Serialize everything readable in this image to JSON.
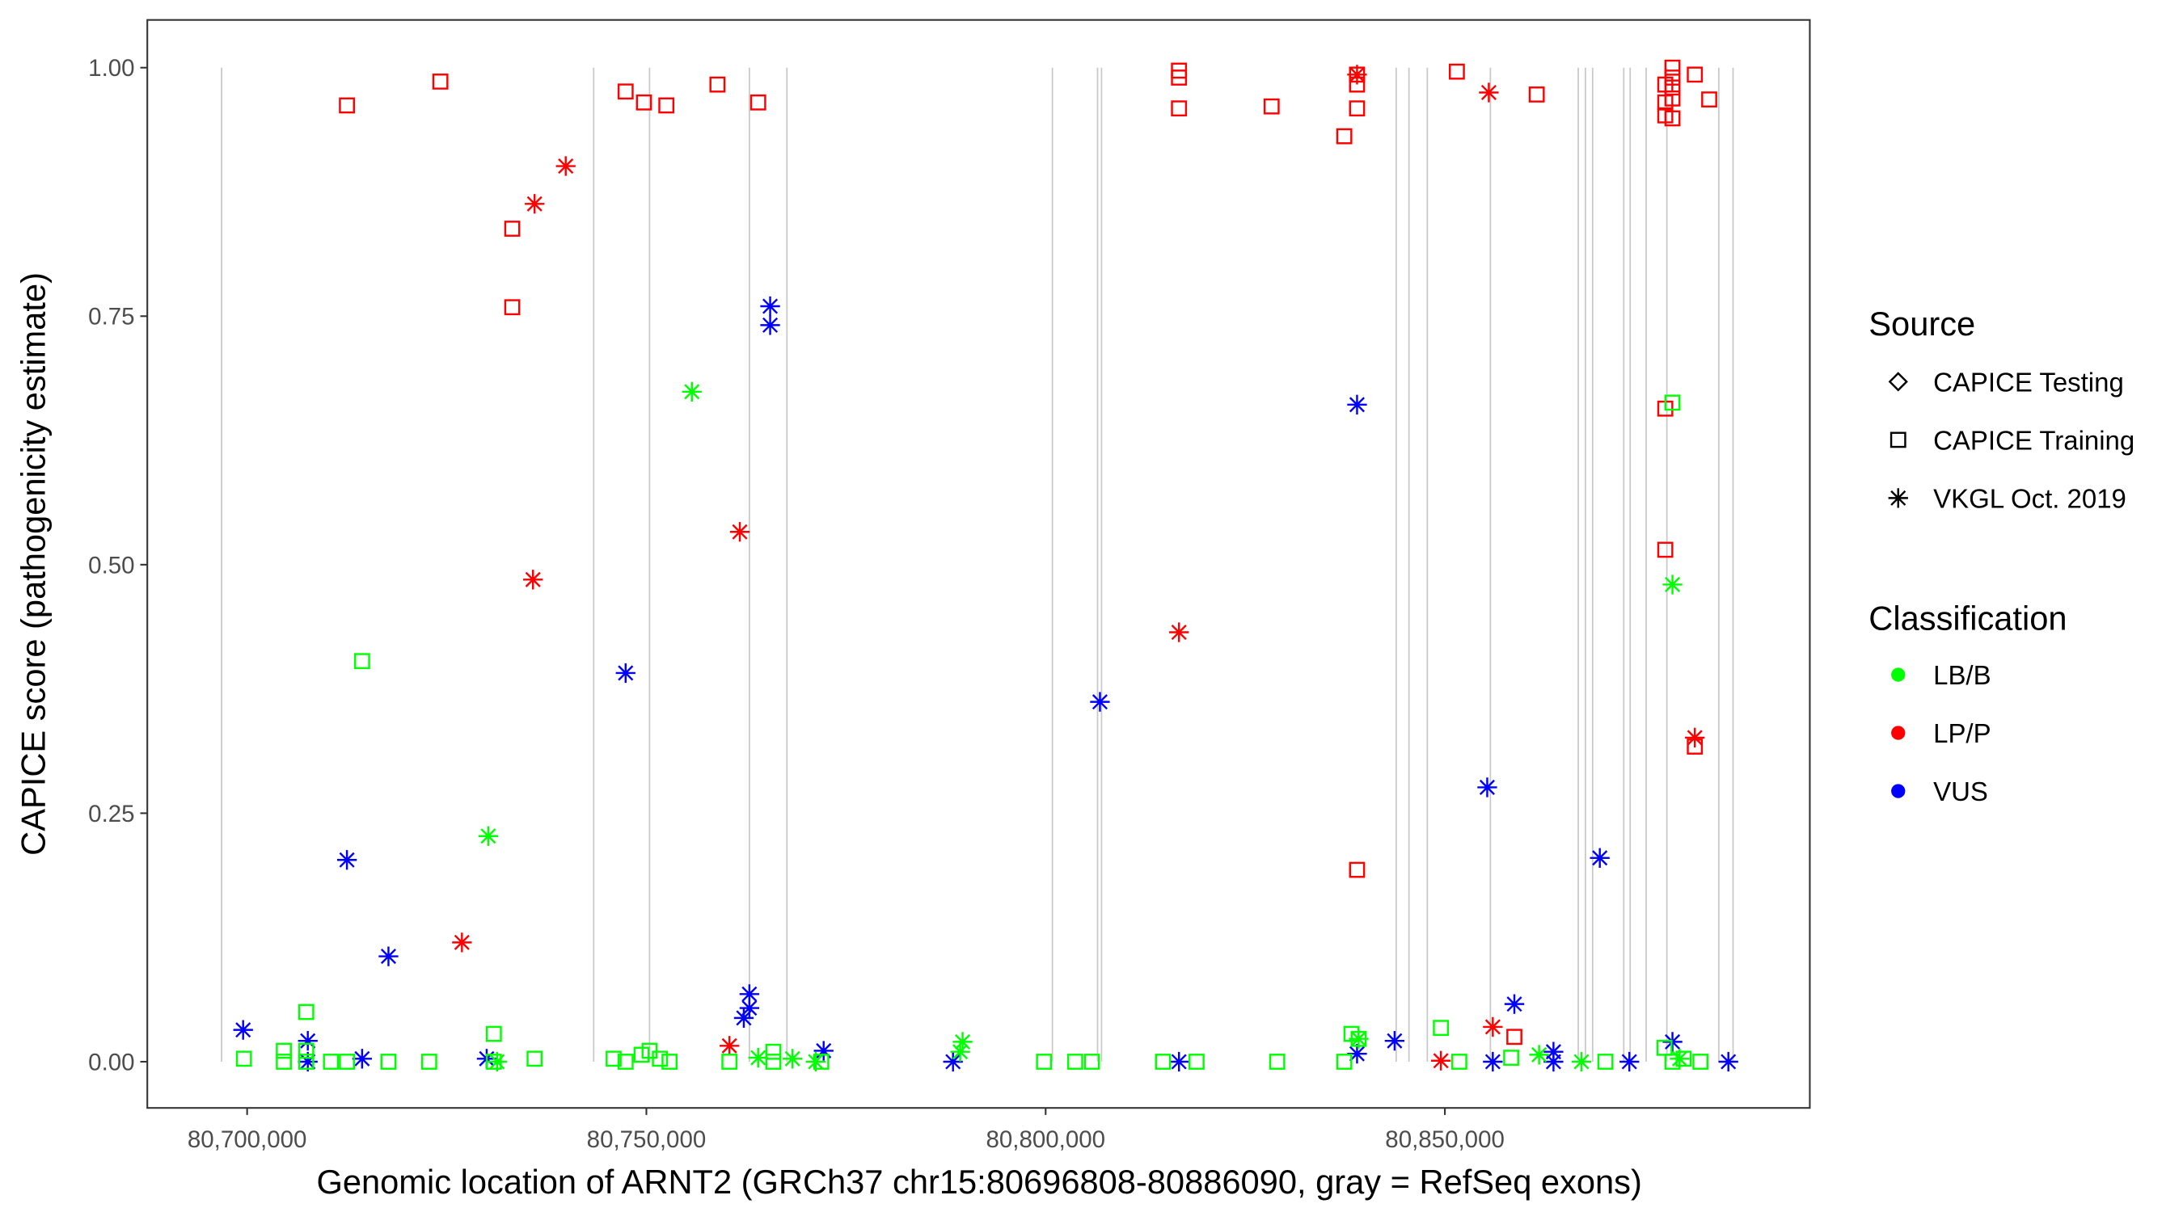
{
  "chart_data": {
    "type": "scatter",
    "xlabel": "Genomic location of ARNT2 (GRCh37 chr15:80696808-80886090, gray = RefSeq exons)",
    "ylabel": "CAPICE score (pathogenicity estimate)",
    "xlim": [
      80687500,
      80895700
    ],
    "ylim": [
      -0.0465,
      1.048
    ],
    "xticks": [
      80700000,
      80750000,
      80800000,
      80850000
    ],
    "xtick_labels": [
      "80,700,000",
      "80,750,000",
      "80,800,000",
      "80,850,000"
    ],
    "yticks": [
      0,
      0.25,
      0.5,
      0.75,
      1.0
    ],
    "ytick_labels": [
      "0.00",
      "0.25",
      "0.50",
      "0.75",
      "1.00"
    ],
    "grid": false,
    "legend_position": "right",
    "legend": {
      "source_title": "Source",
      "sources": [
        {
          "key": "test",
          "label": "CAPICE Testing",
          "shape": "diamond"
        },
        {
          "key": "train",
          "label": "CAPICE Training",
          "shape": "square"
        },
        {
          "key": "vkgl",
          "label": "VKGL Oct. 2019",
          "shape": "asterisk"
        }
      ],
      "class_title": "Classification",
      "classes": [
        {
          "key": "B",
          "label": "LB/B",
          "color": "#00FF00"
        },
        {
          "key": "P",
          "label": "LP/P",
          "color": "#FF0000"
        },
        {
          "key": "U",
          "label": "VUS",
          "color": "#0000FF"
        }
      ]
    },
    "exons": [
      80696808,
      80743400,
      80750400,
      80762900,
      80767600,
      80800850,
      80806500,
      80807000,
      80843900,
      80845500,
      80847800,
      80855700,
      80866700,
      80867600,
      80868500,
      80872400,
      80873200,
      80875200,
      80877800,
      80884300,
      80886090
    ],
    "points": [
      [
        80712500,
        0.962,
        "train",
        "P"
      ],
      [
        80724200,
        0.986,
        "train",
        "P"
      ],
      [
        80733200,
        0.838,
        "train",
        "P"
      ],
      [
        80733200,
        0.759,
        "train",
        "P"
      ],
      [
        80747400,
        0.976,
        "train",
        "P"
      ],
      [
        80749700,
        0.965,
        "train",
        "P"
      ],
      [
        80752500,
        0.962,
        "train",
        "P"
      ],
      [
        80758900,
        0.983,
        "train",
        "P"
      ],
      [
        80764000,
        0.965,
        "train",
        "P"
      ],
      [
        80816700,
        0.997,
        "train",
        "P"
      ],
      [
        80816700,
        0.99,
        "train",
        "P"
      ],
      [
        80816700,
        0.959,
        "train",
        "P"
      ],
      [
        80828300,
        0.961,
        "train",
        "P"
      ],
      [
        80837400,
        0.931,
        "train",
        "P"
      ],
      [
        80839000,
        0.993,
        "train",
        "P"
      ],
      [
        80839000,
        0.983,
        "train",
        "P"
      ],
      [
        80839000,
        0.959,
        "train",
        "P"
      ],
      [
        80839000,
        0.193,
        "train",
        "P"
      ],
      [
        80851500,
        0.996,
        "train",
        "P"
      ],
      [
        80861500,
        0.973,
        "train",
        "P"
      ],
      [
        80858700,
        0.025,
        "train",
        "P"
      ],
      [
        80877600,
        0.983,
        "train",
        "P"
      ],
      [
        80877600,
        0.965,
        "train",
        "P"
      ],
      [
        80877600,
        0.952,
        "train",
        "P"
      ],
      [
        80878500,
        1.0,
        "train",
        "P"
      ],
      [
        80878500,
        0.99,
        "train",
        "P"
      ],
      [
        80878500,
        0.98,
        "train",
        "P"
      ],
      [
        80878500,
        0.969,
        "train",
        "P"
      ],
      [
        80878500,
        0.949,
        "train",
        "P"
      ],
      [
        80881300,
        0.993,
        "train",
        "P"
      ],
      [
        80883100,
        0.968,
        "train",
        "P"
      ],
      [
        80877600,
        0.657,
        "train",
        "P"
      ],
      [
        80877600,
        0.515,
        "train",
        "P"
      ],
      [
        80881300,
        0.317,
        "train",
        "P"
      ],
      [
        80739900,
        0.901,
        "vkgl",
        "P"
      ],
      [
        80736000,
        0.863,
        "vkgl",
        "P"
      ],
      [
        80735800,
        0.485,
        "vkgl",
        "P"
      ],
      [
        80726900,
        0.12,
        "vkgl",
        "P"
      ],
      [
        80761700,
        0.533,
        "vkgl",
        "P"
      ],
      [
        80760400,
        0.016,
        "vkgl",
        "P"
      ],
      [
        80816700,
        0.432,
        "vkgl",
        "P"
      ],
      [
        80839000,
        0.993,
        "vkgl",
        "P"
      ],
      [
        80855500,
        0.975,
        "vkgl",
        "P"
      ],
      [
        80849500,
        0.001,
        "vkgl",
        "P"
      ],
      [
        80856000,
        0.035,
        "vkgl",
        "P"
      ],
      [
        80881300,
        0.326,
        "vkgl",
        "P"
      ],
      [
        80699500,
        0.032,
        "vkgl",
        "U"
      ],
      [
        80712500,
        0.203,
        "vkgl",
        "U"
      ],
      [
        80717700,
        0.106,
        "vkgl",
        "U"
      ],
      [
        80707600,
        0.021,
        "vkgl",
        "U"
      ],
      [
        80707600,
        0.0,
        "vkgl",
        "U"
      ],
      [
        80714400,
        0.003,
        "vkgl",
        "U"
      ],
      [
        80730000,
        0.003,
        "vkgl",
        "U"
      ],
      [
        80747400,
        0.391,
        "vkgl",
        "U"
      ],
      [
        80765500,
        0.76,
        "vkgl",
        "U"
      ],
      [
        80765500,
        0.741,
        "vkgl",
        "U"
      ],
      [
        80762900,
        0.068,
        "vkgl",
        "U"
      ],
      [
        80762900,
        0.054,
        "vkgl",
        "U"
      ],
      [
        80762200,
        0.044,
        "vkgl",
        "U"
      ],
      [
        80772200,
        0.011,
        "vkgl",
        "U"
      ],
      [
        80788400,
        0.0,
        "vkgl",
        "U"
      ],
      [
        80806800,
        0.362,
        "vkgl",
        "U"
      ],
      [
        80816700,
        0.0,
        "vkgl",
        "U"
      ],
      [
        80839000,
        0.661,
        "vkgl",
        "U"
      ],
      [
        80839000,
        0.008,
        "vkgl",
        "U"
      ],
      [
        80843700,
        0.021,
        "vkgl",
        "U"
      ],
      [
        80855300,
        0.276,
        "vkgl",
        "U"
      ],
      [
        80856000,
        0.0,
        "vkgl",
        "U"
      ],
      [
        80858700,
        0.058,
        "vkgl",
        "U"
      ],
      [
        80863600,
        0.01,
        "vkgl",
        "U"
      ],
      [
        80863600,
        0.0,
        "vkgl",
        "U"
      ],
      [
        80869400,
        0.205,
        "vkgl",
        "U"
      ],
      [
        80873100,
        0.0,
        "vkgl",
        "U"
      ],
      [
        80878500,
        0.02,
        "vkgl",
        "U"
      ],
      [
        80885500,
        0.0,
        "vkgl",
        "U"
      ],
      [
        80755700,
        0.674,
        "vkgl",
        "B"
      ],
      [
        80730200,
        0.227,
        "vkgl",
        "B"
      ],
      [
        80731300,
        0.0,
        "vkgl",
        "B"
      ],
      [
        80764000,
        0.004,
        "vkgl",
        "B"
      ],
      [
        80768300,
        0.003,
        "vkgl",
        "B"
      ],
      [
        80771200,
        0.0,
        "vkgl",
        "B"
      ],
      [
        80789600,
        0.02,
        "vkgl",
        "B"
      ],
      [
        80789300,
        0.01,
        "vkgl",
        "B"
      ],
      [
        80839200,
        0.023,
        "vkgl",
        "B"
      ],
      [
        80861800,
        0.007,
        "vkgl",
        "B"
      ],
      [
        80867100,
        0.0,
        "vkgl",
        "B"
      ],
      [
        80878500,
        0.48,
        "vkgl",
        "B"
      ],
      [
        80879400,
        0.003,
        "vkgl",
        "B"
      ],
      [
        80699600,
        0.003,
        "train",
        "B"
      ],
      [
        80704600,
        0.011,
        "train",
        "B"
      ],
      [
        80704600,
        0.0,
        "train",
        "B"
      ],
      [
        80707400,
        0.05,
        "train",
        "B"
      ],
      [
        80707400,
        0.011,
        "train",
        "B"
      ],
      [
        80707400,
        0.0,
        "train",
        "B"
      ],
      [
        80710500,
        0.0,
        "train",
        "B"
      ],
      [
        80712500,
        0.0,
        "train",
        "B"
      ],
      [
        80714400,
        0.403,
        "train",
        "B"
      ],
      [
        80717700,
        0.0,
        "train",
        "B"
      ],
      [
        80722800,
        0.0,
        "train",
        "B"
      ],
      [
        80730900,
        0.028,
        "train",
        "B"
      ],
      [
        80730900,
        0.0,
        "train",
        "B"
      ],
      [
        80736000,
        0.003,
        "train",
        "B"
      ],
      [
        80745900,
        0.003,
        "train",
        "B"
      ],
      [
        80747400,
        0.0,
        "train",
        "B"
      ],
      [
        80749400,
        0.007,
        "train",
        "B"
      ],
      [
        80750400,
        0.011,
        "train",
        "B"
      ],
      [
        80751700,
        0.003,
        "train",
        "B"
      ],
      [
        80752900,
        0.0,
        "train",
        "B"
      ],
      [
        80760400,
        0.0,
        "train",
        "B"
      ],
      [
        80765900,
        0.01,
        "train",
        "B"
      ],
      [
        80765900,
        0.0,
        "train",
        "B"
      ],
      [
        80771900,
        0.0,
        "train",
        "B"
      ],
      [
        80799800,
        0.0,
        "train",
        "B"
      ],
      [
        80803700,
        0.0,
        "train",
        "B"
      ],
      [
        80805800,
        0.0,
        "train",
        "B"
      ],
      [
        80814700,
        0.0,
        "train",
        "B"
      ],
      [
        80818900,
        0.0,
        "train",
        "B"
      ],
      [
        80829000,
        0.0,
        "train",
        "B"
      ],
      [
        80837400,
        0.0,
        "train",
        "B"
      ],
      [
        80838300,
        0.028,
        "train",
        "B"
      ],
      [
        80839200,
        0.023,
        "train",
        "B"
      ],
      [
        80849500,
        0.034,
        "train",
        "B"
      ],
      [
        80851800,
        0.0,
        "train",
        "B"
      ],
      [
        80858300,
        0.004,
        "train",
        "B"
      ],
      [
        80870100,
        0.0,
        "train",
        "B"
      ],
      [
        80877500,
        0.014,
        "train",
        "B"
      ],
      [
        80878500,
        0.663,
        "train",
        "B"
      ],
      [
        80878500,
        0.0,
        "train",
        "B"
      ],
      [
        80879900,
        0.003,
        "train",
        "B"
      ],
      [
        80882000,
        0.0,
        "train",
        "B"
      ]
    ]
  }
}
